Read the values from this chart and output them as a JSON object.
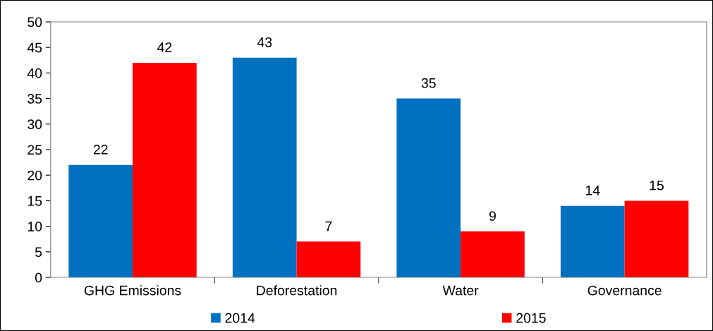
{
  "chart_data": {
    "type": "bar",
    "categories": [
      "GHG Emissions",
      "Deforestation",
      "Water",
      "Governance"
    ],
    "series": [
      {
        "name": "2014",
        "color": "#0070c0",
        "values": [
          22,
          43,
          35,
          14
        ]
      },
      {
        "name": "2015",
        "color": "#ff0000",
        "values": [
          42,
          7,
          9,
          15
        ]
      }
    ],
    "ylim": [
      0,
      50
    ],
    "yticks": [
      0,
      5,
      10,
      15,
      20,
      25,
      30,
      35,
      40,
      45,
      50
    ],
    "data_labels": true,
    "grid": false,
    "legend": "bottom"
  }
}
